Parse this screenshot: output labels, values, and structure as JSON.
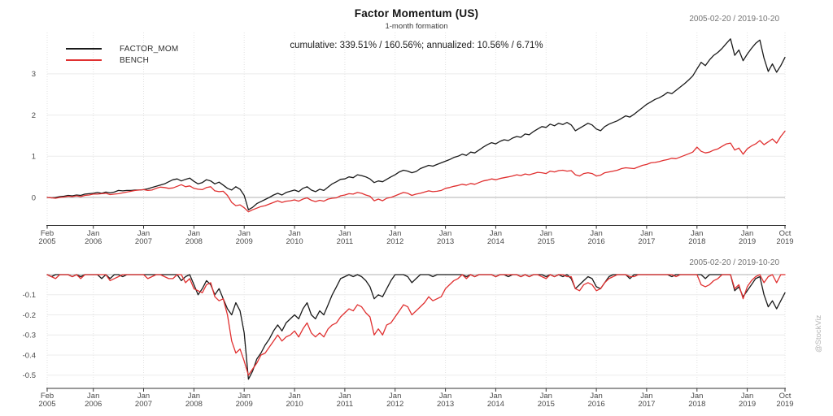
{
  "watermark": "@StockViz",
  "legend": {
    "items": [
      {
        "label": "FACTOR_MOM",
        "color": "#1a1a1a"
      },
      {
        "label": "BENCH",
        "color": "#e03030"
      }
    ]
  },
  "chart_data": [
    {
      "type": "line",
      "panel": "cumulative-returns",
      "title": "Factor Momentum (US)",
      "subtitle": "1-month formation",
      "stats_annotation": "cumulative: 339.51% / 160.56%; annualized: 10.56% / 6.71%",
      "date_range": "2005-02-20 / 2019-10-20",
      "x_start": "2005-02",
      "x_frequency": "monthly",
      "ylim": [
        -0.6,
        4.0
      ],
      "grid": true,
      "legend_position": "top-left",
      "yticks": [
        {
          "v": 0,
          "label": "0"
        },
        {
          "v": 1,
          "label": "1"
        },
        {
          "v": 2,
          "label": "2"
        },
        {
          "v": 3,
          "label": "3"
        }
      ],
      "x_ticks": [
        {
          "i": 0,
          "month": "Feb",
          "year": "2005"
        },
        {
          "i": 11,
          "month": "Jan",
          "year": "2006"
        },
        {
          "i": 23,
          "month": "Jan",
          "year": "2007"
        },
        {
          "i": 35,
          "month": "Jan",
          "year": "2008"
        },
        {
          "i": 47,
          "month": "Jan",
          "year": "2009"
        },
        {
          "i": 59,
          "month": "Jan",
          "year": "2010"
        },
        {
          "i": 71,
          "month": "Jan",
          "year": "2011"
        },
        {
          "i": 83,
          "month": "Jan",
          "year": "2012"
        },
        {
          "i": 95,
          "month": "Jan",
          "year": "2013"
        },
        {
          "i": 107,
          "month": "Jan",
          "year": "2014"
        },
        {
          "i": 119,
          "month": "Jan",
          "year": "2015"
        },
        {
          "i": 131,
          "month": "Jan",
          "year": "2016"
        },
        {
          "i": 143,
          "month": "Jan",
          "year": "2017"
        },
        {
          "i": 155,
          "month": "Jan",
          "year": "2018"
        },
        {
          "i": 167,
          "month": "Jan",
          "year": "2019"
        },
        {
          "i": 176,
          "month": "Oct",
          "year": "2019"
        }
      ],
      "series": [
        {
          "name": "FACTOR_MOM",
          "color": "#1a1a1a",
          "values": [
            0.0,
            -0.01,
            0.0,
            0.02,
            0.03,
            0.05,
            0.04,
            0.06,
            0.05,
            0.08,
            0.09,
            0.1,
            0.12,
            0.1,
            0.13,
            0.11,
            0.13,
            0.17,
            0.16,
            0.17,
            0.17,
            0.18,
            0.18,
            0.19,
            0.21,
            0.24,
            0.27,
            0.3,
            0.33,
            0.38,
            0.43,
            0.45,
            0.4,
            0.44,
            0.47,
            0.39,
            0.33,
            0.36,
            0.43,
            0.4,
            0.33,
            0.37,
            0.3,
            0.22,
            0.18,
            0.26,
            0.2,
            0.05,
            -0.3,
            -0.24,
            -0.15,
            -0.1,
            -0.05,
            0.0,
            0.06,
            0.1,
            0.06,
            0.12,
            0.15,
            0.18,
            0.14,
            0.22,
            0.26,
            0.18,
            0.14,
            0.2,
            0.17,
            0.25,
            0.33,
            0.38,
            0.44,
            0.45,
            0.5,
            0.48,
            0.55,
            0.53,
            0.5,
            0.45,
            0.36,
            0.4,
            0.38,
            0.44,
            0.5,
            0.55,
            0.62,
            0.66,
            0.64,
            0.6,
            0.63,
            0.7,
            0.74,
            0.78,
            0.76,
            0.8,
            0.84,
            0.88,
            0.92,
            0.97,
            1.0,
            1.05,
            1.02,
            1.1,
            1.08,
            1.15,
            1.22,
            1.28,
            1.33,
            1.3,
            1.36,
            1.4,
            1.38,
            1.44,
            1.48,
            1.46,
            1.54,
            1.52,
            1.6,
            1.66,
            1.72,
            1.7,
            1.78,
            1.74,
            1.8,
            1.77,
            1.82,
            1.76,
            1.62,
            1.68,
            1.74,
            1.8,
            1.76,
            1.66,
            1.62,
            1.72,
            1.78,
            1.82,
            1.86,
            1.92,
            1.98,
            1.95,
            2.02,
            2.1,
            2.18,
            2.26,
            2.32,
            2.38,
            2.42,
            2.48,
            2.55,
            2.52,
            2.6,
            2.68,
            2.76,
            2.85,
            2.95,
            3.12,
            3.28,
            3.2,
            3.34,
            3.45,
            3.52,
            3.62,
            3.74,
            3.85,
            3.45,
            3.58,
            3.32,
            3.48,
            3.62,
            3.74,
            3.82,
            3.38,
            3.06,
            3.24,
            3.04,
            3.2,
            3.4
          ]
        },
        {
          "name": "BENCH",
          "color": "#e03030",
          "values": [
            0.0,
            -0.01,
            -0.02,
            0.0,
            0.01,
            0.03,
            0.02,
            0.04,
            0.02,
            0.05,
            0.06,
            0.08,
            0.08,
            0.09,
            0.1,
            0.07,
            0.08,
            0.09,
            0.11,
            0.13,
            0.15,
            0.17,
            0.18,
            0.19,
            0.17,
            0.18,
            0.22,
            0.25,
            0.24,
            0.22,
            0.23,
            0.27,
            0.31,
            0.26,
            0.28,
            0.22,
            0.2,
            0.19,
            0.24,
            0.26,
            0.16,
            0.14,
            0.15,
            0.05,
            -0.12,
            -0.2,
            -0.18,
            -0.25,
            -0.35,
            -0.3,
            -0.26,
            -0.22,
            -0.2,
            -0.16,
            -0.12,
            -0.08,
            -0.12,
            -0.09,
            -0.08,
            -0.06,
            -0.09,
            -0.04,
            -0.01,
            -0.07,
            -0.1,
            -0.07,
            -0.09,
            -0.04,
            -0.02,
            -0.01,
            0.04,
            0.06,
            0.09,
            0.08,
            0.12,
            0.1,
            0.06,
            0.03,
            -0.08,
            -0.04,
            -0.08,
            -0.02,
            0.0,
            0.04,
            0.08,
            0.12,
            0.1,
            0.05,
            0.08,
            0.1,
            0.13,
            0.16,
            0.14,
            0.15,
            0.17,
            0.22,
            0.24,
            0.27,
            0.29,
            0.32,
            0.3,
            0.34,
            0.32,
            0.36,
            0.4,
            0.42,
            0.45,
            0.43,
            0.46,
            0.48,
            0.5,
            0.52,
            0.55,
            0.53,
            0.57,
            0.55,
            0.58,
            0.61,
            0.6,
            0.58,
            0.64,
            0.62,
            0.65,
            0.66,
            0.64,
            0.65,
            0.55,
            0.52,
            0.58,
            0.6,
            0.58,
            0.52,
            0.54,
            0.6,
            0.62,
            0.64,
            0.66,
            0.7,
            0.72,
            0.71,
            0.7,
            0.74,
            0.78,
            0.8,
            0.84,
            0.85,
            0.87,
            0.9,
            0.92,
            0.95,
            0.94,
            0.98,
            1.02,
            1.06,
            1.1,
            1.22,
            1.12,
            1.08,
            1.1,
            1.15,
            1.18,
            1.24,
            1.3,
            1.32,
            1.15,
            1.2,
            1.05,
            1.18,
            1.25,
            1.3,
            1.38,
            1.28,
            1.35,
            1.42,
            1.32,
            1.48,
            1.61
          ]
        }
      ]
    },
    {
      "type": "line",
      "panel": "drawdown",
      "date_range": "2005-02-20 / 2019-10-20",
      "x_start": "2005-02",
      "x_frequency": "monthly",
      "ylim": [
        -0.56,
        0
      ],
      "grid": true,
      "yticks": [
        {
          "v": -0.1,
          "label": "-0.1"
        },
        {
          "v": -0.2,
          "label": "-0.2"
        },
        {
          "v": -0.3,
          "label": "-0.3"
        },
        {
          "v": -0.4,
          "label": "-0.4"
        },
        {
          "v": -0.5,
          "label": "-0.5"
        }
      ],
      "x_ticks": [
        {
          "i": 0,
          "month": "Feb",
          "year": "2005"
        },
        {
          "i": 11,
          "month": "Jan",
          "year": "2006"
        },
        {
          "i": 23,
          "month": "Jan",
          "year": "2007"
        },
        {
          "i": 35,
          "month": "Jan",
          "year": "2008"
        },
        {
          "i": 47,
          "month": "Jan",
          "year": "2009"
        },
        {
          "i": 59,
          "month": "Jan",
          "year": "2010"
        },
        {
          "i": 71,
          "month": "Jan",
          "year": "2011"
        },
        {
          "i": 83,
          "month": "Jan",
          "year": "2012"
        },
        {
          "i": 95,
          "month": "Jan",
          "year": "2013"
        },
        {
          "i": 107,
          "month": "Jan",
          "year": "2014"
        },
        {
          "i": 119,
          "month": "Jan",
          "year": "2015"
        },
        {
          "i": 131,
          "month": "Jan",
          "year": "2016"
        },
        {
          "i": 143,
          "month": "Jan",
          "year": "2017"
        },
        {
          "i": 155,
          "month": "Jan",
          "year": "2018"
        },
        {
          "i": 167,
          "month": "Jan",
          "year": "2019"
        },
        {
          "i": 176,
          "month": "Oct",
          "year": "2019"
        }
      ],
      "series": [
        {
          "name": "FACTOR_MOM",
          "color": "#1a1a1a",
          "values": [
            0,
            -0.01,
            0,
            0,
            0,
            0,
            -0.01,
            0,
            -0.01,
            0,
            0,
            0,
            0,
            -0.02,
            0,
            -0.02,
            0,
            0,
            -0.01,
            0,
            0,
            0,
            0,
            0,
            0,
            0,
            0,
            0,
            0,
            0,
            0,
            0,
            -0.03,
            -0.01,
            0,
            -0.05,
            -0.1,
            -0.07,
            -0.03,
            -0.05,
            -0.1,
            -0.07,
            -0.12,
            -0.17,
            -0.2,
            -0.14,
            -0.18,
            -0.29,
            -0.52,
            -0.48,
            -0.42,
            -0.39,
            -0.35,
            -0.32,
            -0.28,
            -0.25,
            -0.28,
            -0.24,
            -0.22,
            -0.2,
            -0.22,
            -0.17,
            -0.14,
            -0.2,
            -0.22,
            -0.18,
            -0.2,
            -0.15,
            -0.1,
            -0.06,
            -0.02,
            -0.01,
            0,
            -0.01,
            0,
            -0.01,
            -0.03,
            -0.06,
            -0.12,
            -0.1,
            -0.11,
            -0.07,
            -0.03,
            0,
            0,
            0,
            -0.01,
            -0.04,
            -0.02,
            0,
            0,
            0,
            -0.01,
            0,
            0,
            0,
            0,
            0,
            0,
            0,
            -0.01,
            0,
            -0.01,
            0,
            0,
            0,
            0,
            -0.01,
            0,
            0,
            -0.01,
            0,
            0,
            -0.01,
            0,
            -0.01,
            0,
            0,
            0,
            -0.01,
            0,
            -0.01,
            0,
            -0.01,
            0,
            -0.02,
            -0.07,
            -0.05,
            -0.03,
            -0.01,
            -0.02,
            -0.06,
            -0.07,
            -0.04,
            -0.01,
            0,
            0,
            0,
            0,
            -0.02,
            0,
            0,
            0,
            0,
            0,
            0,
            0,
            0,
            0,
            -0.01,
            0,
            0,
            0,
            0,
            0,
            0,
            0,
            -0.02,
            0,
            0,
            0,
            0,
            0,
            0,
            -0.08,
            -0.06,
            -0.11,
            -0.08,
            -0.05,
            -0.02,
            -0.01,
            -0.1,
            -0.16,
            -0.13,
            -0.17,
            -0.13,
            -0.09
          ]
        },
        {
          "name": "BENCH",
          "color": "#e03030",
          "values": [
            0,
            -0.01,
            -0.02,
            0,
            0,
            0,
            -0.01,
            0,
            -0.02,
            0,
            0,
            0,
            0,
            0,
            0,
            -0.03,
            -0.02,
            -0.01,
            0,
            0,
            0,
            0,
            0,
            0,
            -0.02,
            -0.01,
            0,
            0,
            -0.01,
            -0.02,
            -0.02,
            0,
            0,
            -0.04,
            -0.02,
            -0.07,
            -0.08,
            -0.09,
            -0.05,
            -0.04,
            -0.11,
            -0.13,
            -0.12,
            -0.2,
            -0.33,
            -0.39,
            -0.37,
            -0.43,
            -0.5,
            -0.47,
            -0.44,
            -0.4,
            -0.39,
            -0.36,
            -0.33,
            -0.3,
            -0.33,
            -0.31,
            -0.3,
            -0.28,
            -0.31,
            -0.27,
            -0.24,
            -0.29,
            -0.31,
            -0.29,
            -0.31,
            -0.27,
            -0.25,
            -0.24,
            -0.21,
            -0.19,
            -0.17,
            -0.18,
            -0.15,
            -0.16,
            -0.19,
            -0.21,
            -0.3,
            -0.27,
            -0.3,
            -0.25,
            -0.24,
            -0.21,
            -0.18,
            -0.15,
            -0.16,
            -0.2,
            -0.18,
            -0.16,
            -0.14,
            -0.11,
            -0.13,
            -0.12,
            -0.11,
            -0.07,
            -0.05,
            -0.03,
            -0.02,
            0,
            -0.02,
            0,
            -0.01,
            0,
            0,
            0,
            0,
            -0.01,
            0,
            0,
            0,
            0,
            0,
            -0.01,
            0,
            -0.01,
            0,
            0,
            -0.01,
            -0.02,
            0,
            -0.01,
            0,
            0,
            -0.01,
            -0.01,
            -0.07,
            -0.08,
            -0.05,
            -0.04,
            -0.05,
            -0.08,
            -0.07,
            -0.04,
            -0.02,
            -0.01,
            0,
            0,
            0,
            -0.01,
            -0.01,
            0,
            0,
            0,
            0,
            0,
            0,
            0,
            0,
            0,
            -0.01,
            0,
            0,
            0,
            0,
            0,
            -0.05,
            -0.06,
            -0.05,
            -0.03,
            -0.02,
            0,
            0,
            0,
            -0.07,
            -0.05,
            -0.12,
            -0.06,
            -0.03,
            -0.01,
            0,
            -0.04,
            -0.01,
            0,
            -0.04,
            0,
            0
          ]
        }
      ]
    }
  ]
}
